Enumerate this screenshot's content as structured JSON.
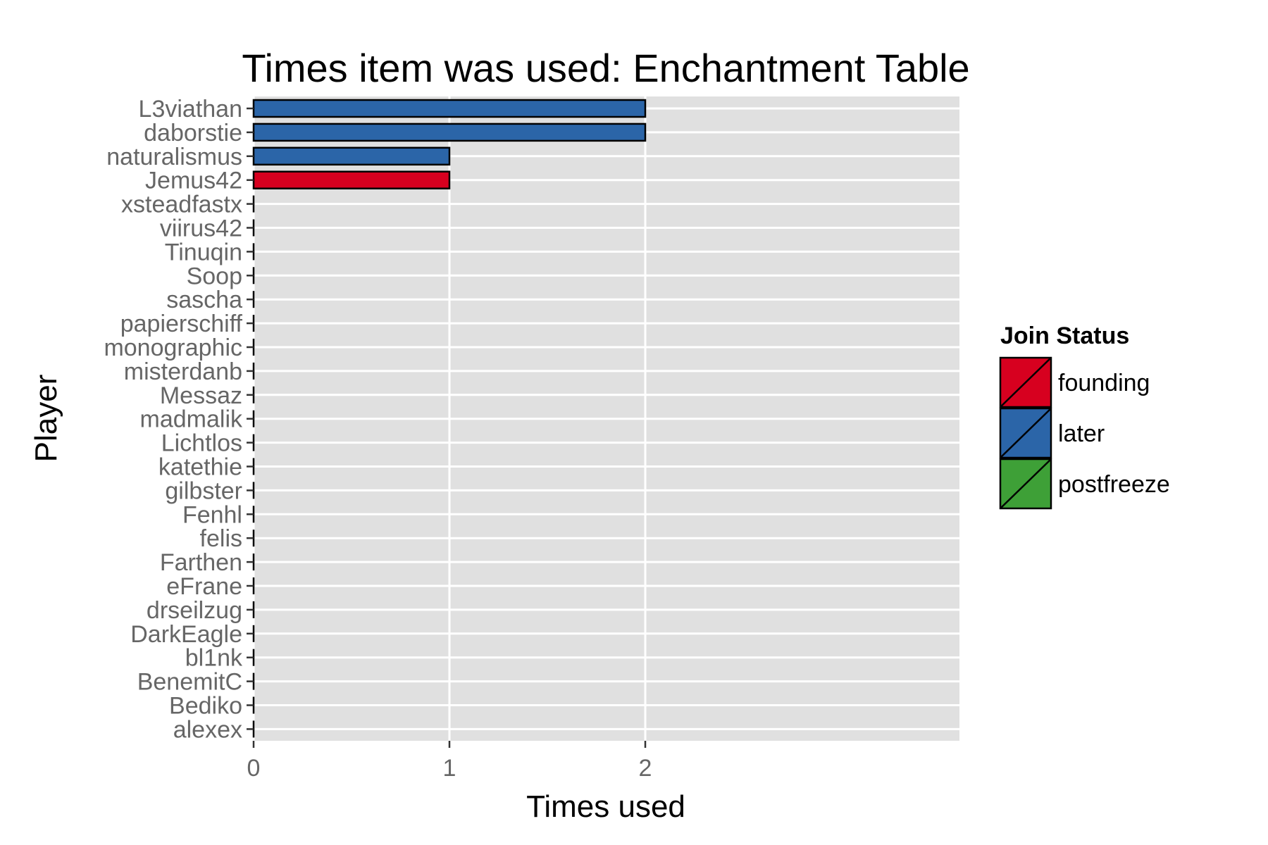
{
  "chart_data": {
    "type": "bar",
    "orientation": "horizontal",
    "title": "Times item was used: Enchantment Table",
    "xlabel": "Times used",
    "ylabel": "Player",
    "xlim": [
      0,
      3.6
    ],
    "x_ticks": [
      "0",
      "1",
      "2"
    ],
    "grid": true,
    "legend_title": "Join Status",
    "legend_position": "right",
    "legend": [
      {
        "name": "founding",
        "color": "#d7001f"
      },
      {
        "name": "later",
        "color": "#2b65a8"
      },
      {
        "name": "postfreeze",
        "color": "#3ea037"
      }
    ],
    "categories": [
      "L3viathan",
      "daborstie",
      "naturalismus",
      "Jemus42",
      "xsteadfastx",
      "viirus42",
      "Tinuqin",
      "Soop",
      "sascha",
      "papierschiff",
      "monographic",
      "misterdanb",
      "Messaz",
      "madmalik",
      "Lichtlos",
      "katethie",
      "gilbster",
      "Fenhl",
      "felis",
      "Farthen",
      "eFrane",
      "drseilzug",
      "DarkEagle",
      "bl1nk",
      "BenemitC",
      "Bediko",
      "alexex"
    ],
    "values": [
      2,
      2,
      1,
      1,
      0,
      0,
      0,
      0,
      0,
      0,
      0,
      0,
      0,
      0,
      0,
      0,
      0,
      0,
      0,
      0,
      0,
      0,
      0,
      0,
      0,
      0,
      0
    ],
    "groups": [
      "later",
      "later",
      "later",
      "founding",
      "",
      "",
      "",
      "",
      "",
      "",
      "",
      "",
      "",
      "",
      "",
      "",
      "",
      "",
      "",
      "",
      "",
      "",
      "",
      "",
      "",
      "",
      ""
    ]
  }
}
